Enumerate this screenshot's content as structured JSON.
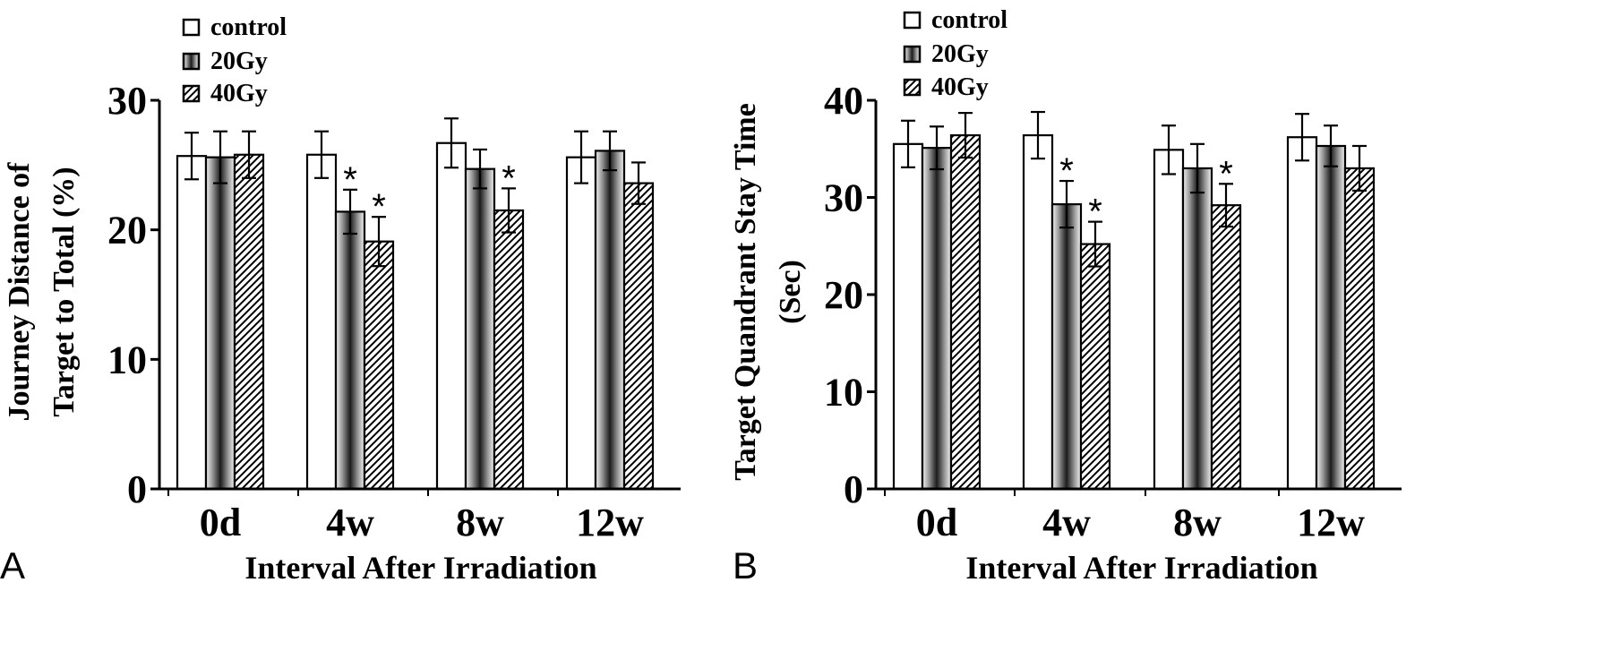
{
  "chart_data": [
    {
      "type": "bar",
      "panel_label": "A",
      "categories": [
        "0d",
        "4w",
        "8w",
        "12w"
      ],
      "series": [
        {
          "name": "control",
          "values": [
            25.7,
            25.8,
            26.7,
            25.6
          ],
          "errors": [
            1.8,
            1.8,
            1.9,
            2.0
          ]
        },
        {
          "name": "20Gy",
          "values": [
            25.6,
            21.4,
            24.7,
            26.1
          ],
          "errors": [
            2.0,
            1.7,
            1.5,
            1.5
          ]
        },
        {
          "name": "40Gy",
          "values": [
            25.8,
            19.1,
            21.5,
            23.6
          ],
          "errors": [
            1.8,
            1.9,
            1.7,
            1.6
          ]
        }
      ],
      "significance": [
        {
          "category": "4w",
          "series": "20Gy",
          "label": "*"
        },
        {
          "category": "4w",
          "series": "40Gy",
          "label": "*"
        },
        {
          "category": "8w",
          "series": "40Gy",
          "label": "*"
        }
      ],
      "ylabel_lines": [
        "Journey Distance of",
        "Target to Total (%)"
      ],
      "xlabel": "Interval After Irradiation",
      "ylim": [
        0,
        30
      ],
      "yticks": [
        0,
        10,
        20,
        30
      ],
      "legend": [
        "control",
        "20Gy",
        "40Gy"
      ],
      "legend_position": "top-left",
      "grid": false
    },
    {
      "type": "bar",
      "panel_label": "B",
      "categories": [
        "0d",
        "4w",
        "8w",
        "12w"
      ],
      "series": [
        {
          "name": "control",
          "values": [
            35.5,
            36.4,
            34.9,
            36.2
          ],
          "errors": [
            2.4,
            2.4,
            2.5,
            2.4
          ]
        },
        {
          "name": "20Gy",
          "values": [
            35.1,
            29.3,
            33.0,
            35.3
          ],
          "errors": [
            2.2,
            2.4,
            2.5,
            2.1
          ]
        },
        {
          "name": "40Gy",
          "values": [
            36.4,
            25.2,
            29.2,
            33.0
          ],
          "errors": [
            2.3,
            2.3,
            2.2,
            2.3
          ]
        }
      ],
      "significance": [
        {
          "category": "4w",
          "series": "20Gy",
          "label": "*"
        },
        {
          "category": "4w",
          "series": "40Gy",
          "label": "*"
        },
        {
          "category": "8w",
          "series": "40Gy",
          "label": "*"
        }
      ],
      "ylabel_lines": [
        "Target Quandrant Stay Time",
        "(Sec)"
      ],
      "xlabel": "Interval After Irradiation",
      "ylim": [
        0,
        40
      ],
      "yticks": [
        0,
        10,
        20,
        30,
        40
      ],
      "legend": [
        "control",
        "20Gy",
        "40Gy"
      ],
      "legend_position": "top-left",
      "grid": false
    }
  ]
}
